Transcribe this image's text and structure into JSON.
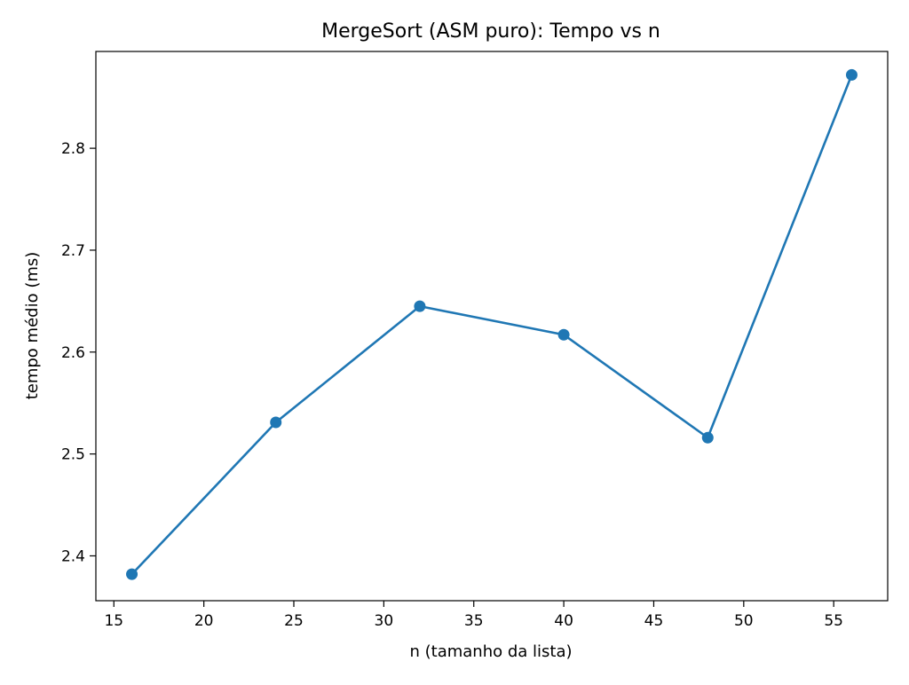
{
  "chart_data": {
    "type": "line",
    "title": "MergeSort (ASM puro): Tempo vs n",
    "xlabel": "n (tamanho da lista)",
    "ylabel": "tempo médio (ms)",
    "xlim": [
      14.0,
      58.0
    ],
    "ylim": [
      2.356,
      2.895
    ],
    "xticks": [
      15,
      20,
      25,
      30,
      35,
      40,
      45,
      50,
      55
    ],
    "yticks": [
      2.4,
      2.5,
      2.6,
      2.7,
      2.8
    ],
    "grid": false,
    "legend": "none",
    "series": [
      {
        "color": "#1f77b4",
        "marker": "circle",
        "x": [
          16,
          24,
          32,
          40,
          48,
          56
        ],
        "y": [
          2.382,
          2.531,
          2.645,
          2.617,
          2.516,
          2.872
        ]
      }
    ]
  }
}
